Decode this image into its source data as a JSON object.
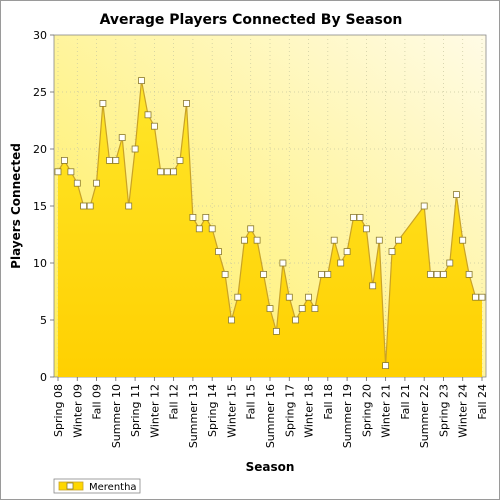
{
  "chart_data": {
    "type": "area",
    "title": "Average Players Connected By Season",
    "xlabel": "Season",
    "ylabel": "Players Connected",
    "ylim": [
      0,
      30
    ],
    "yticks": [
      0,
      5,
      10,
      15,
      20,
      25,
      30
    ],
    "grid": true,
    "legend_position": "bottom-left",
    "categories": [
      "Spring 08",
      "Winter 09",
      "Fall 09",
      "Summer 10",
      "Spring 11",
      "Winter 12",
      "Fall 12",
      "Summer 13",
      "Spring 14",
      "Winter 15",
      "Fall 15",
      "Summer 16",
      "Spring 17",
      "Winter 18",
      "Fall 18",
      "Summer 19",
      "Spring 20",
      "Winter 21",
      "Fall 21",
      "Summer 22",
      "Spring 23",
      "Winter 24",
      "Fall 24"
    ],
    "series": [
      {
        "name": "Merentha",
        "color": "#FFD700",
        "line_color": "#C9A227",
        "x": [
          0,
          0.33,
          0.67,
          1,
          1.33,
          1.67,
          2,
          2.33,
          2.67,
          3,
          3.33,
          3.67,
          4,
          4.33,
          4.67,
          5,
          5.33,
          5.67,
          6,
          6.33,
          6.67,
          7,
          7.33,
          7.67,
          8,
          8.33,
          8.67,
          9,
          9.33,
          9.67,
          10,
          10.33,
          10.67,
          11,
          11.33,
          11.67,
          12,
          12.33,
          12.67,
          13,
          13.33,
          13.67,
          14,
          14.33,
          14.67,
          15,
          15.33,
          15.67,
          16,
          16.33,
          16.67,
          17,
          17.33,
          17.67,
          19,
          19.33,
          19.67,
          20,
          20.33,
          20.67,
          21,
          21.33,
          21.67,
          22
        ],
        "values": [
          18,
          19,
          18,
          17,
          15,
          15,
          17,
          24,
          19,
          19,
          21,
          15,
          20,
          26,
          23,
          22,
          18,
          18,
          18,
          19,
          24,
          14,
          13,
          14,
          13,
          11,
          9,
          5,
          7,
          12,
          13,
          12,
          9,
          6,
          4,
          10,
          7,
          5,
          6,
          7,
          6,
          9,
          9,
          12,
          10,
          11,
          14,
          14,
          13,
          8,
          12,
          1,
          11,
          12,
          15,
          9,
          9,
          9,
          10,
          16,
          12,
          9,
          7,
          7
        ]
      }
    ]
  },
  "legend": {
    "label": "Merentha"
  }
}
